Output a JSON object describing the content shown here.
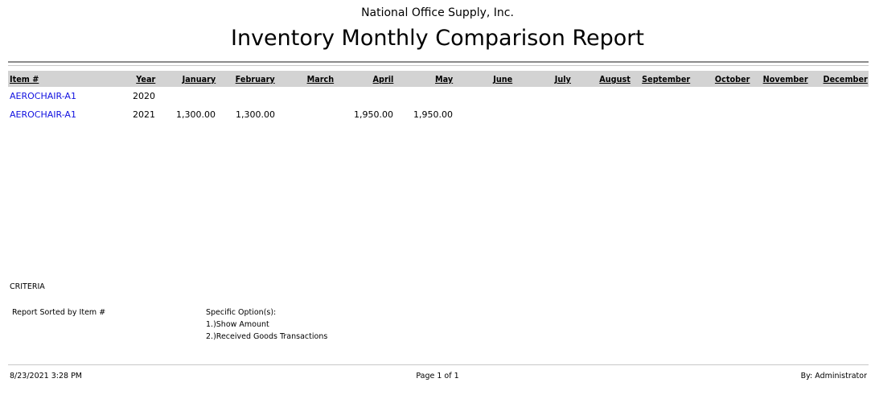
{
  "report": {
    "company": "National Office Supply, Inc.",
    "title": "Inventory Monthly Comparison Report"
  },
  "table": {
    "columns": [
      "Item #",
      "Year",
      "January",
      "February",
      "March",
      "April",
      "May",
      "June",
      "July",
      "August",
      "September",
      "October",
      "November",
      "December"
    ],
    "rows": [
      {
        "item": "AEROCHAIR-A1",
        "year": "2020",
        "values": [
          "",
          "",
          "",
          "",
          "",
          "",
          "",
          "",
          "",
          "",
          "",
          ""
        ]
      },
      {
        "item": "AEROCHAIR-A1",
        "year": "2021",
        "values": [
          "1,300.00",
          "1,300.00",
          "",
          "1,950.00",
          "1,950.00",
          "",
          "",
          "",
          "",
          "",
          "",
          ""
        ]
      }
    ]
  },
  "criteria": {
    "heading": "CRITERIA",
    "sorted": "Report Sorted by Item #",
    "options_label": "Specific Option(s):",
    "options": [
      "1.)Show Amount",
      "2.)Received Goods Transactions"
    ]
  },
  "footer": {
    "datetime": "8/23/2021 3:28 PM",
    "page": "Page 1 of 1",
    "user": "By: Administrator"
  },
  "colors": {
    "link": "#1010e0",
    "header_band": "#d3d3d3"
  }
}
